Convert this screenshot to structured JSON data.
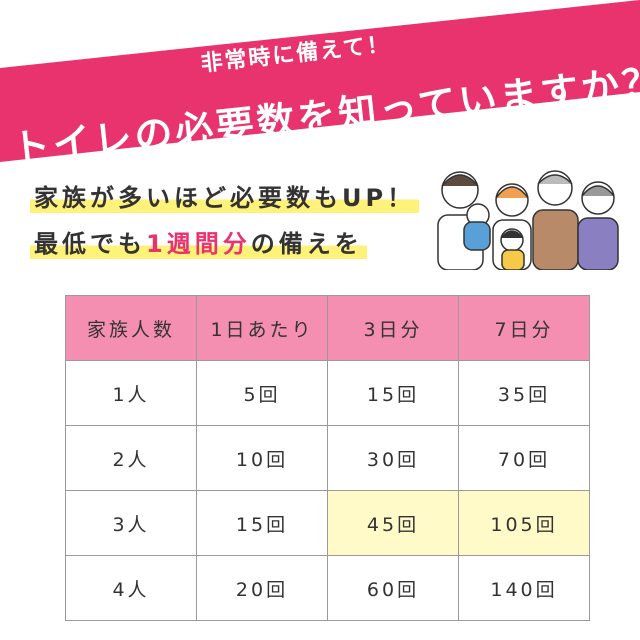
{
  "header": {
    "subtitle": "非常時に備えて！",
    "title": "トイレの必要数を知っていますか？"
  },
  "lead": {
    "line1": "家族が多いほど必要数もUP！",
    "line2": [
      "最低でも",
      "1週間分",
      "の備えを"
    ]
  },
  "table": {
    "columns": [
      "家族人数",
      "1日あたり",
      "3日分",
      "7日分"
    ],
    "rows": [
      [
        "1人",
        "5回",
        "15回",
        "35回"
      ],
      [
        "2人",
        "10回",
        "30回",
        "70回"
      ],
      [
        "3人",
        "15回",
        "45回",
        "105回"
      ],
      [
        "4人",
        "20回",
        "60回",
        "140回"
      ]
    ]
  }
}
